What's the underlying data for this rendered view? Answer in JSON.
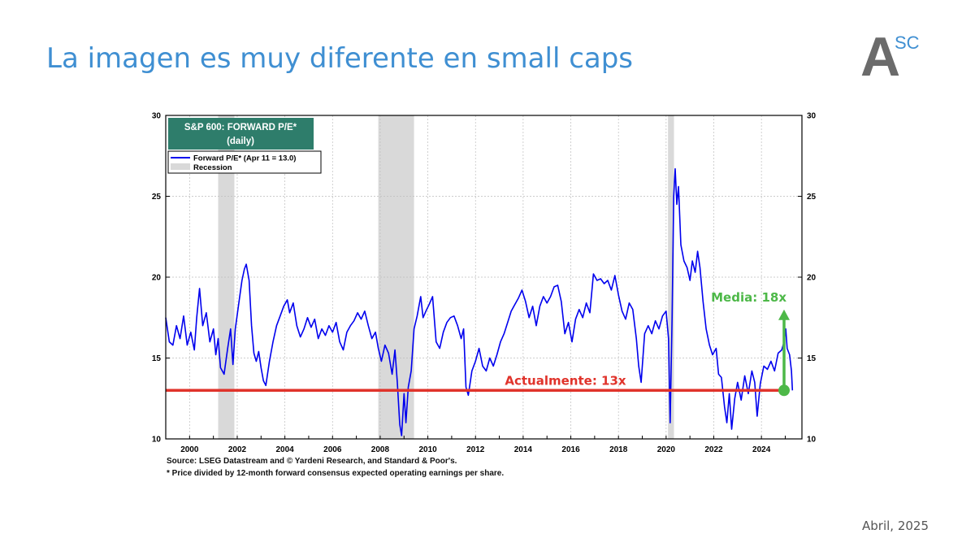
{
  "slide": {
    "title": "La imagen es muy diferente en small caps",
    "logo": {
      "main": "A",
      "superscript": "SC"
    },
    "date": "Abril, 2025"
  },
  "colors": {
    "title": "#3f8fd2",
    "series": "#0000ee",
    "recession": "#d9d9d9",
    "current_line": "#e0332b",
    "average_arrow": "#4db848",
    "chart_title_bg": "#2e7d6b"
  },
  "chart_data": {
    "type": "line",
    "title": "S&P 600: FORWARD P/E*",
    "subtitle": "(daily)",
    "legend": {
      "placement": "top-left",
      "series_label": "Forward P/E* (Apr 11 = 13.0)",
      "recession_label": "Recession"
    },
    "xlim": [
      1999.0,
      2025.7
    ],
    "ylim": [
      10,
      30
    ],
    "x_ticks": [
      2000,
      2002,
      2004,
      2006,
      2008,
      2010,
      2012,
      2014,
      2016,
      2018,
      2020,
      2022,
      2024
    ],
    "y_ticks": [
      10,
      15,
      20,
      25,
      30
    ],
    "grid": true,
    "recessions": [
      {
        "start": 2001.2,
        "end": 2001.88
      },
      {
        "start": 2007.92,
        "end": 2009.42
      },
      {
        "start": 2020.08,
        "end": 2020.33
      }
    ],
    "series": [
      {
        "name": "Forward P/E*",
        "points": [
          [
            1999.0,
            17.5
          ],
          [
            1999.15,
            16.0
          ],
          [
            1999.3,
            15.8
          ],
          [
            1999.45,
            17.0
          ],
          [
            1999.6,
            16.2
          ],
          [
            1999.75,
            17.6
          ],
          [
            1999.9,
            15.8
          ],
          [
            2000.05,
            16.6
          ],
          [
            2000.2,
            15.5
          ],
          [
            2000.3,
            17.5
          ],
          [
            2000.42,
            19.3
          ],
          [
            2000.55,
            17.0
          ],
          [
            2000.7,
            17.8
          ],
          [
            2000.85,
            16.0
          ],
          [
            2001.0,
            16.8
          ],
          [
            2001.1,
            15.2
          ],
          [
            2001.2,
            16.2
          ],
          [
            2001.3,
            14.4
          ],
          [
            2001.45,
            14.0
          ],
          [
            2001.6,
            15.6
          ],
          [
            2001.72,
            16.8
          ],
          [
            2001.82,
            14.6
          ],
          [
            2001.92,
            16.8
          ],
          [
            2002.05,
            18.2
          ],
          [
            2002.2,
            19.8
          ],
          [
            2002.3,
            20.5
          ],
          [
            2002.38,
            20.8
          ],
          [
            2002.5,
            19.8
          ],
          [
            2002.6,
            17.0
          ],
          [
            2002.7,
            15.3
          ],
          [
            2002.8,
            14.8
          ],
          [
            2002.9,
            15.4
          ],
          [
            2003.0,
            14.4
          ],
          [
            2003.1,
            13.6
          ],
          [
            2003.2,
            13.3
          ],
          [
            2003.35,
            14.8
          ],
          [
            2003.5,
            16.0
          ],
          [
            2003.65,
            17.0
          ],
          [
            2003.8,
            17.6
          ],
          [
            2003.95,
            18.2
          ],
          [
            2004.1,
            18.6
          ],
          [
            2004.2,
            17.8
          ],
          [
            2004.35,
            18.4
          ],
          [
            2004.5,
            17.0
          ],
          [
            2004.65,
            16.3
          ],
          [
            2004.8,
            16.8
          ],
          [
            2004.95,
            17.5
          ],
          [
            2005.1,
            16.9
          ],
          [
            2005.25,
            17.4
          ],
          [
            2005.4,
            16.2
          ],
          [
            2005.55,
            16.8
          ],
          [
            2005.7,
            16.4
          ],
          [
            2005.85,
            17.0
          ],
          [
            2006.0,
            16.6
          ],
          [
            2006.15,
            17.2
          ],
          [
            2006.3,
            16.0
          ],
          [
            2006.45,
            15.5
          ],
          [
            2006.6,
            16.6
          ],
          [
            2006.75,
            17.0
          ],
          [
            2006.9,
            17.3
          ],
          [
            2007.05,
            17.8
          ],
          [
            2007.2,
            17.4
          ],
          [
            2007.35,
            17.9
          ],
          [
            2007.5,
            17.0
          ],
          [
            2007.65,
            16.2
          ],
          [
            2007.8,
            16.6
          ],
          [
            2007.92,
            15.6
          ],
          [
            2008.05,
            14.8
          ],
          [
            2008.2,
            15.8
          ],
          [
            2008.35,
            15.3
          ],
          [
            2008.5,
            14.0
          ],
          [
            2008.62,
            15.5
          ],
          [
            2008.72,
            13.5
          ],
          [
            2008.82,
            10.9
          ],
          [
            2008.9,
            10.2
          ],
          [
            2009.0,
            12.8
          ],
          [
            2009.08,
            11.0
          ],
          [
            2009.18,
            13.2
          ],
          [
            2009.3,
            14.2
          ],
          [
            2009.42,
            16.8
          ],
          [
            2009.55,
            17.6
          ],
          [
            2009.7,
            18.8
          ],
          [
            2009.8,
            17.5
          ],
          [
            2009.92,
            17.9
          ],
          [
            2010.05,
            18.3
          ],
          [
            2010.2,
            18.8
          ],
          [
            2010.35,
            16.0
          ],
          [
            2010.5,
            15.6
          ],
          [
            2010.65,
            16.6
          ],
          [
            2010.8,
            17.2
          ],
          [
            2010.95,
            17.5
          ],
          [
            2011.1,
            17.6
          ],
          [
            2011.25,
            17.0
          ],
          [
            2011.4,
            16.2
          ],
          [
            2011.5,
            16.8
          ],
          [
            2011.6,
            13.2
          ],
          [
            2011.7,
            12.7
          ],
          [
            2011.85,
            14.2
          ],
          [
            2012.0,
            14.8
          ],
          [
            2012.15,
            15.6
          ],
          [
            2012.3,
            14.5
          ],
          [
            2012.45,
            14.2
          ],
          [
            2012.6,
            15.0
          ],
          [
            2012.75,
            14.5
          ],
          [
            2012.9,
            15.2
          ],
          [
            2013.05,
            16.0
          ],
          [
            2013.2,
            16.5
          ],
          [
            2013.35,
            17.2
          ],
          [
            2013.5,
            17.9
          ],
          [
            2013.65,
            18.3
          ],
          [
            2013.8,
            18.7
          ],
          [
            2013.95,
            19.2
          ],
          [
            2014.1,
            18.5
          ],
          [
            2014.25,
            17.5
          ],
          [
            2014.4,
            18.2
          ],
          [
            2014.55,
            17.0
          ],
          [
            2014.7,
            18.2
          ],
          [
            2014.85,
            18.8
          ],
          [
            2015.0,
            18.4
          ],
          [
            2015.15,
            18.8
          ],
          [
            2015.3,
            19.4
          ],
          [
            2015.45,
            19.5
          ],
          [
            2015.6,
            18.5
          ],
          [
            2015.75,
            16.5
          ],
          [
            2015.9,
            17.2
          ],
          [
            2016.05,
            16.0
          ],
          [
            2016.2,
            17.4
          ],
          [
            2016.35,
            18.0
          ],
          [
            2016.5,
            17.5
          ],
          [
            2016.65,
            18.4
          ],
          [
            2016.8,
            17.8
          ],
          [
            2016.95,
            20.2
          ],
          [
            2017.1,
            19.8
          ],
          [
            2017.25,
            19.9
          ],
          [
            2017.4,
            19.6
          ],
          [
            2017.55,
            19.8
          ],
          [
            2017.7,
            19.2
          ],
          [
            2017.85,
            20.1
          ],
          [
            2018.0,
            18.9
          ],
          [
            2018.15,
            17.9
          ],
          [
            2018.3,
            17.4
          ],
          [
            2018.45,
            18.4
          ],
          [
            2018.6,
            18.0
          ],
          [
            2018.75,
            16.2
          ],
          [
            2018.85,
            14.5
          ],
          [
            2018.95,
            13.5
          ],
          [
            2019.1,
            16.5
          ],
          [
            2019.25,
            17.0
          ],
          [
            2019.4,
            16.5
          ],
          [
            2019.55,
            17.3
          ],
          [
            2019.7,
            16.8
          ],
          [
            2019.85,
            17.6
          ],
          [
            2020.0,
            17.9
          ],
          [
            2020.1,
            16.2
          ],
          [
            2020.17,
            11.0
          ],
          [
            2020.25,
            17.5
          ],
          [
            2020.32,
            25.0
          ],
          [
            2020.38,
            26.7
          ],
          [
            2020.45,
            24.5
          ],
          [
            2020.52,
            25.6
          ],
          [
            2020.62,
            22.0
          ],
          [
            2020.75,
            21.0
          ],
          [
            2020.88,
            20.6
          ],
          [
            2021.0,
            19.8
          ],
          [
            2021.1,
            21.0
          ],
          [
            2021.22,
            20.3
          ],
          [
            2021.32,
            21.6
          ],
          [
            2021.42,
            20.6
          ],
          [
            2021.55,
            18.5
          ],
          [
            2021.68,
            16.8
          ],
          [
            2021.82,
            15.8
          ],
          [
            2021.95,
            15.2
          ],
          [
            2022.1,
            15.6
          ],
          [
            2022.2,
            14.0
          ],
          [
            2022.32,
            13.8
          ],
          [
            2022.45,
            12.0
          ],
          [
            2022.55,
            11.0
          ],
          [
            2022.65,
            12.8
          ],
          [
            2022.75,
            10.6
          ],
          [
            2022.88,
            12.5
          ],
          [
            2023.0,
            13.5
          ],
          [
            2023.15,
            12.4
          ],
          [
            2023.3,
            13.9
          ],
          [
            2023.45,
            12.8
          ],
          [
            2023.6,
            14.2
          ],
          [
            2023.72,
            13.5
          ],
          [
            2023.82,
            11.4
          ],
          [
            2023.95,
            13.4
          ],
          [
            2024.1,
            14.5
          ],
          [
            2024.25,
            14.3
          ],
          [
            2024.4,
            14.8
          ],
          [
            2024.55,
            14.2
          ],
          [
            2024.7,
            15.3
          ],
          [
            2024.85,
            15.5
          ],
          [
            2024.95,
            16.0
          ],
          [
            2025.02,
            16.8
          ],
          [
            2025.08,
            15.6
          ],
          [
            2025.18,
            15.2
          ],
          [
            2025.26,
            14.2
          ],
          [
            2025.3,
            13.0
          ]
        ]
      }
    ],
    "annotations": {
      "current": {
        "label": "Actualmente: 13x",
        "value": 13
      },
      "average": {
        "label": "Media: 18x",
        "value": 18
      }
    },
    "source_lines": [
      "Source: LSEG Datastream and © Yardeni Research, and Standard & Poor's.",
      "* Price divided by 12-month forward consensus expected operating earnings per share."
    ]
  }
}
